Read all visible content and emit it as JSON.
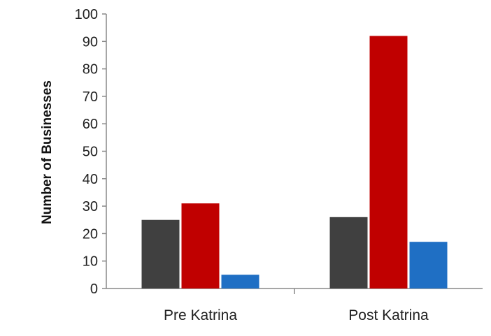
{
  "chart_data": {
    "type": "bar",
    "title": "",
    "xlabel": "",
    "ylabel": "Number of Businesses",
    "ylim": [
      0,
      100
    ],
    "yticks": [
      0,
      10,
      20,
      30,
      40,
      50,
      60,
      70,
      80,
      90,
      100
    ],
    "categories": [
      "Pre Katrina",
      "Post Katrina"
    ],
    "series": [
      {
        "color": "#404040",
        "values": [
          25,
          26
        ]
      },
      {
        "color": "#c00000",
        "values": [
          31,
          92
        ]
      },
      {
        "color": "#1f6fc4",
        "values": [
          5,
          17
        ]
      }
    ],
    "grid": false,
    "legend": "none"
  }
}
